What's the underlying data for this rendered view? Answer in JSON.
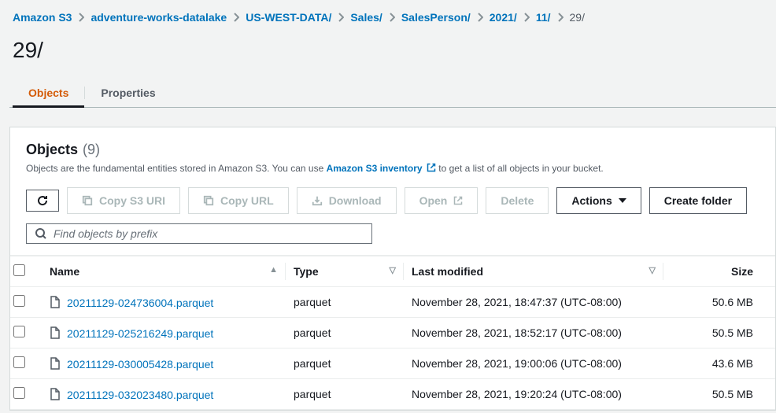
{
  "breadcrumb": {
    "items": [
      {
        "label": "Amazon S3",
        "current": false
      },
      {
        "label": "adventure-works-datalake",
        "current": false
      },
      {
        "label": "US-WEST-DATA/",
        "current": false
      },
      {
        "label": "Sales/",
        "current": false
      },
      {
        "label": "SalesPerson/",
        "current": false
      },
      {
        "label": "2021/",
        "current": false
      },
      {
        "label": "11/",
        "current": false
      },
      {
        "label": "29/",
        "current": true
      }
    ]
  },
  "page_title": "29/",
  "tabs": {
    "objects": "Objects",
    "properties": "Properties"
  },
  "panel": {
    "title": "Objects",
    "count": "(9)",
    "desc_pre": "Objects are the fundamental entities stored in Amazon S3. You can use ",
    "desc_link": "Amazon S3 inventory",
    "desc_post": " to get a list of all objects in your bucket."
  },
  "toolbar": {
    "copy_uri": "Copy S3 URI",
    "copy_url": "Copy URL",
    "download": "Download",
    "open": "Open",
    "delete": "Delete",
    "actions": "Actions",
    "create_folder": "Create folder"
  },
  "search": {
    "placeholder": "Find objects by prefix"
  },
  "columns": {
    "name": "Name",
    "type": "Type",
    "last_modified": "Last modified",
    "size": "Size"
  },
  "rows": [
    {
      "name": "20211129-024736004.parquet",
      "type": "parquet",
      "last_modified": "November 28, 2021, 18:47:37 (UTC-08:00)",
      "size": "50.6 MB"
    },
    {
      "name": "20211129-025216249.parquet",
      "type": "parquet",
      "last_modified": "November 28, 2021, 18:52:17 (UTC-08:00)",
      "size": "50.5 MB"
    },
    {
      "name": "20211129-030005428.parquet",
      "type": "parquet",
      "last_modified": "November 28, 2021, 19:00:06 (UTC-08:00)",
      "size": "43.6 MB"
    },
    {
      "name": "20211129-032023480.parquet",
      "type": "parquet",
      "last_modified": "November 28, 2021, 19:20:24 (UTC-08:00)",
      "size": "50.5 MB"
    }
  ]
}
